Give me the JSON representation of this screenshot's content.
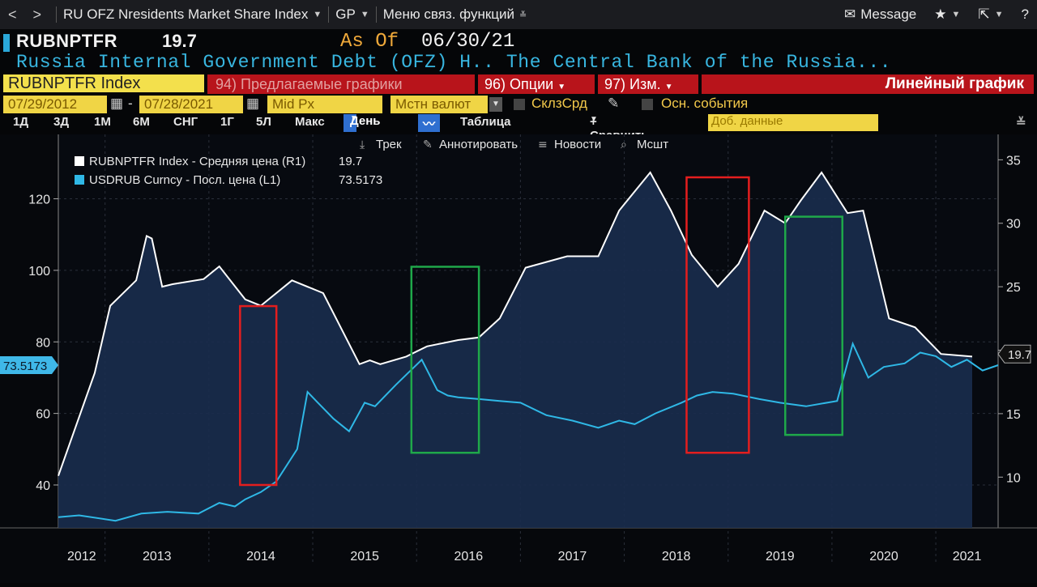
{
  "topbar": {
    "back": "<",
    "forward": ">",
    "title": "RU OFZ Nresidents Market Share Index",
    "source": "GP",
    "menu": "Меню связ. функций",
    "message": "Message"
  },
  "header": {
    "ticker": "RUBNPTFR",
    "price": "19.7",
    "asof_label": "As Of",
    "asof_date": "06/30/21",
    "description": "Russia Internal Government Debt (OFZ) H.. The Central Bank of the Russia..."
  },
  "toolbar": {
    "security": "RUBNPTFR Index",
    "suggested": "94) Предлагаемые графики",
    "options": "96) Опции",
    "edit": "97) Изм.",
    "chart_type": "Линейный график",
    "start_date": "07/29/2012",
    "end_date": "07/28/2021",
    "date_sep": "-",
    "price_field": "Mid Px",
    "currency": "Мстн валют",
    "spread": "СклзСрд",
    "events": "Осн. события",
    "periods": [
      "1Д",
      "3Д",
      "1М",
      "6М",
      "СНГ",
      "1Г",
      "5Л",
      "Макс"
    ],
    "frequency": "День",
    "table": "Таблица",
    "compare": "+ Сравнить",
    "add_data": "Доб. данные",
    "track": "Трек",
    "annotate": "Аннотировать",
    "news": "Новости",
    "zoom": "Мсшт"
  },
  "chart_data": {
    "type": "line",
    "title": "",
    "xlabel": "",
    "ylabel": "",
    "x_ticks": [
      "2012",
      "2013",
      "2014",
      "2015",
      "2016",
      "2017",
      "2018",
      "2019",
      "2020",
      "2021"
    ],
    "xlim": [
      2012.55,
      2021.6
    ],
    "left_axis": {
      "ylim": [
        28,
        138
      ],
      "ticks": [
        40,
        60,
        80,
        100,
        120
      ]
    },
    "right_axis": {
      "ylim": [
        6,
        37
      ],
      "ticks": [
        10,
        15,
        20,
        25,
        30,
        35
      ]
    },
    "legend": [
      {
        "label": "RUBNPTFR Index - Средняя цена (R1)",
        "value": "19.7",
        "color": "#ffffff"
      },
      {
        "label": "USDRUB Curncy - Посл. цена (L1)",
        "value": "73.5173",
        "color": "#2fb8e6"
      }
    ],
    "last_value_labels": {
      "left": "73.5173",
      "right": "19.7"
    },
    "series": [
      {
        "name": "RUBNPTFR Index (R1)",
        "axis": "right",
        "style": "area",
        "color": "#ffffff",
        "x": [
          2012.55,
          2012.9,
          2013.05,
          2013.3,
          2013.4,
          2013.45,
          2013.55,
          2013.65,
          2013.95,
          2014.1,
          2014.35,
          2014.5,
          2014.8,
          2015.1,
          2015.45,
          2015.55,
          2015.65,
          2015.9,
          2016.1,
          2016.4,
          2016.6,
          2016.8,
          2017.05,
          2017.45,
          2017.75,
          2017.95,
          2018.1,
          2018.25,
          2018.45,
          2018.65,
          2018.9,
          2019.1,
          2019.35,
          2019.55,
          2019.7,
          2019.9,
          2020.15,
          2020.3,
          2020.55,
          2020.8,
          2021.05,
          2021.35
        ],
        "y": [
          10.1,
          18.2,
          23.5,
          25.5,
          29.0,
          28.8,
          25.0,
          25.2,
          25.6,
          26.6,
          24.0,
          23.5,
          25.5,
          24.5,
          18.9,
          19.2,
          18.9,
          19.5,
          20.3,
          20.8,
          21.0,
          22.5,
          26.5,
          27.4,
          27.4,
          31.0,
          32.5,
          34.0,
          31.0,
          27.5,
          25.0,
          26.8,
          31.0,
          30.0,
          31.8,
          34.0,
          30.8,
          31.0,
          22.5,
          21.8,
          19.7,
          19.5
        ]
      },
      {
        "name": "USDRUB Curncy (L1)",
        "axis": "left",
        "style": "line",
        "color": "#2fb8e6",
        "x": [
          2012.55,
          2012.75,
          2013.1,
          2013.35,
          2013.6,
          2013.9,
          2014.1,
          2014.25,
          2014.35,
          2014.5,
          2014.65,
          2014.85,
          2014.95,
          2015.05,
          2015.2,
          2015.35,
          2015.5,
          2015.6,
          2015.8,
          2016.05,
          2016.2,
          2016.3,
          2016.4,
          2016.6,
          2016.8,
          2017.0,
          2017.25,
          2017.5,
          2017.75,
          2017.95,
          2018.1,
          2018.3,
          2018.55,
          2018.7,
          2018.85,
          2019.05,
          2019.3,
          2019.5,
          2019.75,
          2020.05,
          2020.2,
          2020.35,
          2020.5,
          2020.7,
          2020.85,
          2021.0,
          2021.15,
          2021.3,
          2021.45,
          2021.6
        ],
        "y": [
          31.0,
          31.5,
          30.0,
          32.0,
          32.5,
          32.0,
          35.0,
          34.0,
          36.0,
          38.0,
          41.0,
          50.0,
          66.0,
          63.0,
          58.5,
          55.0,
          63.0,
          62.0,
          68.0,
          75.0,
          66.5,
          65.0,
          64.5,
          64.0,
          63.5,
          63.0,
          59.5,
          58.0,
          56.0,
          58.0,
          57.0,
          60.0,
          63.0,
          65.0,
          66.0,
          65.5,
          64.0,
          63.0,
          62.0,
          63.5,
          79.5,
          70.0,
          73.0,
          74.0,
          77.0,
          76.0,
          73.0,
          75.0,
          72.0,
          73.5
        ]
      }
    ],
    "highlight_boxes": [
      {
        "color": "red",
        "x": [
          2014.3,
          2014.65
        ],
        "y_left": [
          40,
          90
        ]
      },
      {
        "color": "green",
        "x": [
          2015.95,
          2016.6
        ],
        "y_left": [
          49,
          101
        ]
      },
      {
        "color": "red",
        "x": [
          2018.6,
          2019.2
        ],
        "y_left": [
          49,
          126
        ]
      },
      {
        "color": "green",
        "x": [
          2019.55,
          2020.1
        ],
        "y_left": [
          54,
          115
        ]
      }
    ]
  }
}
